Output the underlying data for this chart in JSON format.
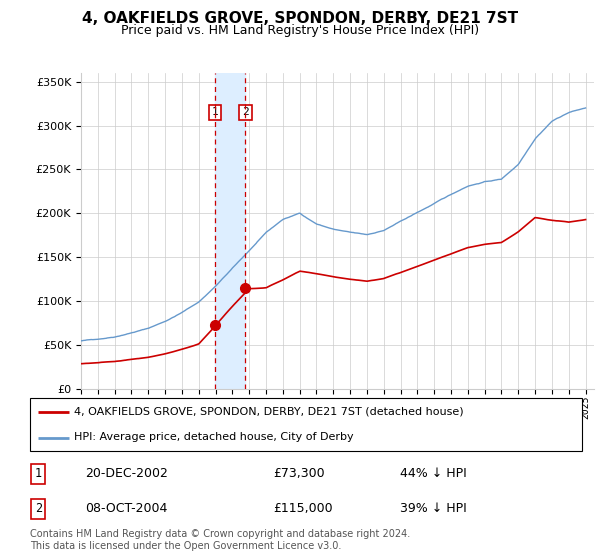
{
  "title": "4, OAKFIELDS GROVE, SPONDON, DERBY, DE21 7ST",
  "subtitle": "Price paid vs. HM Land Registry's House Price Index (HPI)",
  "legend_line1": "4, OAKFIELDS GROVE, SPONDON, DERBY, DE21 7ST (detached house)",
  "legend_line2": "HPI: Average price, detached house, City of Derby",
  "sale1_date_label": "20-DEC-2002",
  "sale1_price_label": "£73,300",
  "sale1_hpi_label": "44% ↓ HPI",
  "sale2_date_label": "08-OCT-2004",
  "sale2_price_label": "£115,000",
  "sale2_hpi_label": "39% ↓ HPI",
  "sale1_year": 2002.97,
  "sale1_price": 73300,
  "sale2_year": 2004.78,
  "sale2_price": 115000,
  "footer": "Contains HM Land Registry data © Crown copyright and database right 2024.\nThis data is licensed under the Open Government Licence v3.0.",
  "ylim": [
    0,
    360000
  ],
  "xlim_start": 1995,
  "xlim_end": 2025.5,
  "hpi_color": "#6699cc",
  "price_color": "#cc0000",
  "shade_color": "#ddeeff",
  "vline_color": "#cc0000",
  "grid_color": "#cccccc",
  "background_color": "#ffffff",
  "hpi_years": [
    1995,
    1996,
    1997,
    1998,
    1999,
    2000,
    2001,
    2002,
    2003,
    2004,
    2005,
    2006,
    2007,
    2008,
    2009,
    2010,
    2011,
    2012,
    2013,
    2014,
    2015,
    2016,
    2017,
    2018,
    2019,
    2020,
    2021,
    2022,
    2023,
    2024,
    2025
  ],
  "hpi_vals": [
    55000,
    57000,
    60000,
    65000,
    70000,
    78000,
    88000,
    100000,
    118000,
    138000,
    158000,
    178000,
    193000,
    200000,
    188000,
    182000,
    178000,
    175000,
    180000,
    190000,
    200000,
    210000,
    220000,
    230000,
    235000,
    238000,
    255000,
    285000,
    305000,
    315000,
    320000
  ],
  "price_years": [
    1995,
    1996,
    1997,
    1998,
    1999,
    2000,
    2001,
    2002,
    2003,
    2004,
    2005,
    2006,
    2007,
    2008,
    2009,
    2010,
    2011,
    2012,
    2013,
    2014,
    2015,
    2016,
    2017,
    2018,
    2019,
    2020,
    2021,
    2022,
    2023,
    2024,
    2025
  ],
  "price_vals": [
    29000,
    30000,
    31500,
    34000,
    36500,
    40500,
    45800,
    52000,
    73300,
    95000,
    115000,
    116000,
    125000,
    135000,
    132000,
    128000,
    125000,
    123000,
    126000,
    133000,
    140000,
    147000,
    154000,
    161000,
    165000,
    167000,
    179000,
    195000,
    192000,
    190000,
    193000
  ]
}
